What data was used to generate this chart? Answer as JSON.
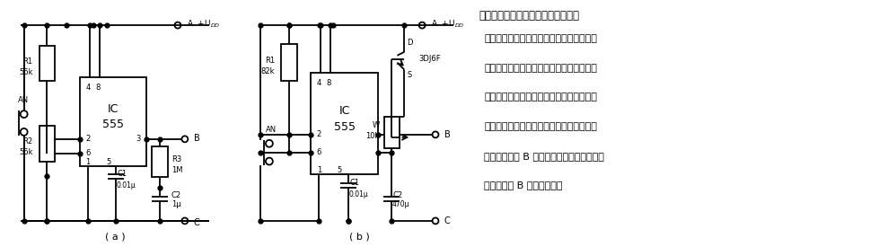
{
  "bg_color": "#ffffff",
  "title_text": "触按式可控硅过零开关　下面的两个",
  "desc_lines": [
    "电路为触按式开关电路，前者为触按式通断",
    "开关，后者触按式长延时定时开关。将其与",
    "上一条的可控硅过零开关电路组合在一起，",
    "就可以构成触按式可控硅过零开关。只要将",
    "此电路的输出 B 端与可控硅过零开关电路的",
    "控制输入端 B 点相连即可。"
  ],
  "label_a": "( a )",
  "label_b": "( b )"
}
